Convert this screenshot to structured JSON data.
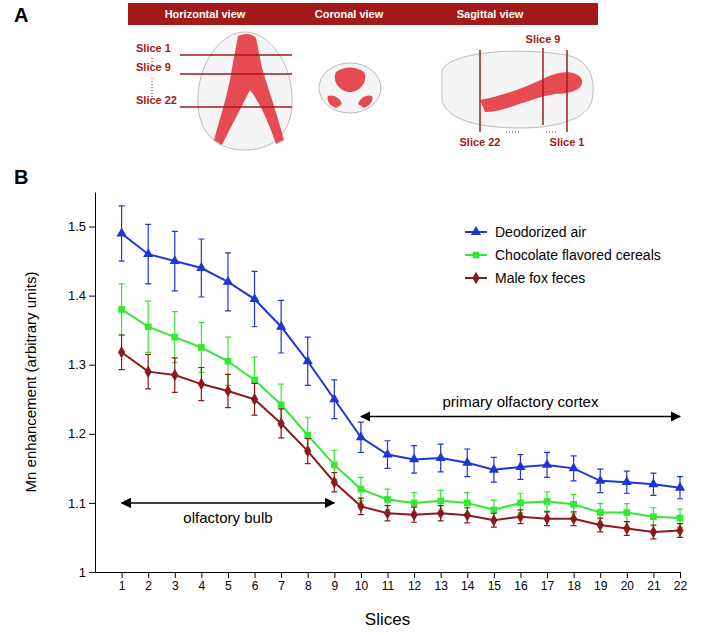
{
  "panel_a": {
    "label": "A",
    "views": [
      "Horizontal view",
      "Coronal view",
      "Sagittal view"
    ],
    "horizontal_slices": [
      "Slice 1",
      "Slice 9",
      "Slice 22"
    ],
    "sagittal_slices": [
      "Slice 9",
      "Slice 22",
      "Slice 1"
    ]
  },
  "panel_b_label": "B",
  "chart_data": {
    "type": "line",
    "x_label": "Slices",
    "y_label": "Mn enhancement (arbitrary units)",
    "x": [
      1,
      2,
      3,
      4,
      5,
      6,
      7,
      8,
      9,
      10,
      11,
      12,
      13,
      14,
      15,
      16,
      17,
      18,
      19,
      20,
      21,
      22
    ],
    "xlim": [
      0,
      22
    ],
    "xticks": [
      1,
      2,
      3,
      4,
      5,
      6,
      7,
      8,
      9,
      10,
      11,
      12,
      13,
      14,
      15,
      16,
      17,
      18,
      19,
      20,
      21,
      22
    ],
    "ylim": [
      1,
      1.55
    ],
    "yticks": [
      1,
      1.1,
      1.2,
      1.3,
      1.4,
      1.5
    ],
    "grid": false,
    "legend": "upper right",
    "series": [
      {
        "name": "Deodorized air",
        "color": "#1f35d8",
        "marker": "triangle",
        "values": [
          1.49,
          1.46,
          1.45,
          1.44,
          1.42,
          1.395,
          1.355,
          1.305,
          1.25,
          1.195,
          1.17,
          1.163,
          1.165,
          1.158,
          1.148,
          1.152,
          1.155,
          1.15,
          1.132,
          1.13,
          1.127,
          1.122
        ],
        "errors": [
          0.04,
          0.043,
          0.043,
          0.042,
          0.042,
          0.04,
          0.038,
          0.035,
          0.028,
          0.022,
          0.02,
          0.02,
          0.02,
          0.02,
          0.018,
          0.018,
          0.018,
          0.018,
          0.017,
          0.016,
          0.016,
          0.016
        ]
      },
      {
        "name": "Chocolate flavored cereals",
        "color": "#33e833",
        "marker": "square",
        "values": [
          1.38,
          1.355,
          1.34,
          1.325,
          1.305,
          1.278,
          1.242,
          1.198,
          1.155,
          1.12,
          1.105,
          1.1,
          1.103,
          1.1,
          1.09,
          1.1,
          1.102,
          1.098,
          1.086,
          1.086,
          1.08,
          1.078
        ],
        "errors": [
          0.037,
          0.037,
          0.037,
          0.036,
          0.035,
          0.033,
          0.03,
          0.026,
          0.021,
          0.017,
          0.015,
          0.015,
          0.015,
          0.015,
          0.014,
          0.014,
          0.014,
          0.014,
          0.013,
          0.013,
          0.013,
          0.013
        ]
      },
      {
        "name": "Male fox feces",
        "color": "#8b1a1a",
        "marker": "diamond",
        "values": [
          1.318,
          1.29,
          1.285,
          1.272,
          1.262,
          1.25,
          1.215,
          1.175,
          1.13,
          1.095,
          1.085,
          1.083,
          1.085,
          1.082,
          1.075,
          1.08,
          1.077,
          1.077,
          1.068,
          1.063,
          1.058,
          1.06
        ],
        "errors": [
          0.025,
          0.025,
          0.025,
          0.024,
          0.024,
          0.023,
          0.021,
          0.018,
          0.014,
          0.012,
          0.011,
          0.011,
          0.011,
          0.011,
          0.01,
          0.01,
          0.01,
          0.01,
          0.01,
          0.01,
          0.01,
          0.01
        ]
      }
    ],
    "annotations": [
      {
        "text": "olfactory bulb",
        "x_start": 1,
        "x_end": 9,
        "y": 1.1
      },
      {
        "text": "primary olfactory cortex",
        "x_start": 10,
        "x_end": 22,
        "y": 1.225
      }
    ]
  }
}
